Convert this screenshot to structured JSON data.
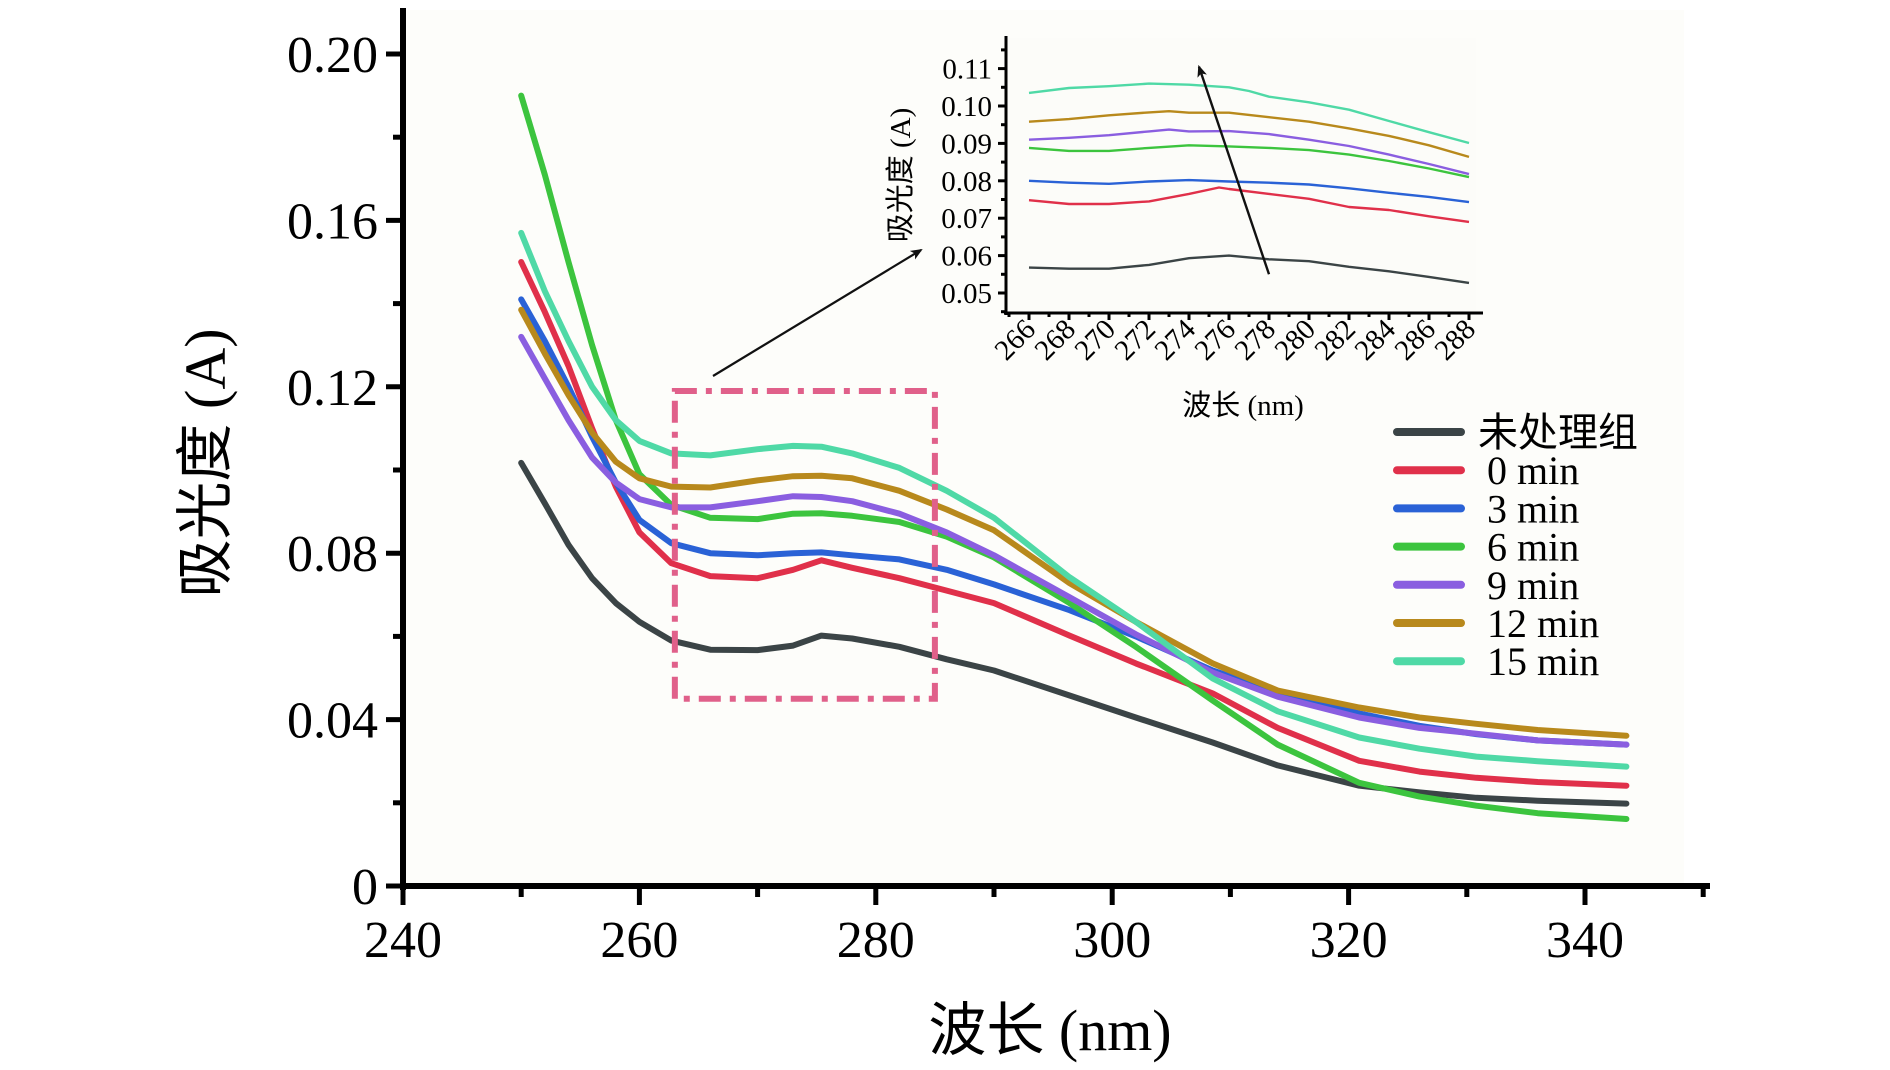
{
  "chart_data": {
    "type": "line",
    "title": "",
    "xlabel": "波长 (nm)",
    "ylabel": "吸光度 (A)",
    "xlim": [
      240,
      350
    ],
    "ylim": [
      0,
      0.2
    ],
    "xticks": [
      240,
      260,
      280,
      300,
      320,
      340
    ],
    "xtick_labels": [
      "240",
      "260",
      "280",
      "300",
      "320",
      "340"
    ],
    "yticks": [
      0,
      0.04,
      0.08,
      0.12,
      0.16,
      0.2
    ],
    "ytick_labels": [
      "0",
      "0.04",
      "0.08",
      "0.12",
      "0.16",
      "0.20"
    ],
    "grid": false,
    "legend_position": "right",
    "series": [
      {
        "name": "未处理组",
        "color": "#3b4446",
        "x": [
          250,
          252,
          254,
          256,
          258,
          260,
          262.7,
          266,
          270,
          273,
          275.4,
          278,
          282,
          286,
          290,
          296.4,
          302,
          308.5,
          314,
          320.9,
          326,
          330.8,
          336,
          343.5
        ],
        "y": [
          0.1017,
          0.092,
          0.082,
          0.074,
          0.068,
          0.0635,
          0.059,
          0.0568,
          0.0567,
          0.0578,
          0.0602,
          0.0595,
          0.0575,
          0.0545,
          0.0518,
          0.0458,
          0.0405,
          0.0345,
          0.029,
          0.0241,
          0.0225,
          0.0212,
          0.0205,
          0.0198
        ]
      },
      {
        "name": "0 min",
        "color": "#e0304a",
        "x": [
          250,
          252,
          254,
          256,
          258,
          260,
          262.7,
          266,
          270,
          273,
          275.4,
          278,
          282,
          286,
          290,
          296.4,
          302,
          308.5,
          314,
          320.9,
          326,
          330.8,
          336,
          343.5
        ],
        "y": [
          0.15,
          0.138,
          0.125,
          0.11,
          0.096,
          0.085,
          0.0776,
          0.0745,
          0.074,
          0.076,
          0.0783,
          0.0765,
          0.074,
          0.071,
          0.068,
          0.0602,
          0.0535,
          0.0463,
          0.038,
          0.0301,
          0.0275,
          0.026,
          0.025,
          0.0241
        ]
      },
      {
        "name": "3 min",
        "color": "#2a62d6",
        "x": [
          250,
          252,
          254,
          256,
          258,
          260,
          262.7,
          266,
          270,
          273,
          275.4,
          278,
          282,
          286,
          290,
          296.4,
          302,
          308.5,
          314,
          320.9,
          326,
          330.8,
          336,
          343.5
        ],
        "y": [
          0.141,
          0.131,
          0.12,
          0.108,
          0.097,
          0.088,
          0.0824,
          0.08,
          0.0795,
          0.08,
          0.0802,
          0.0795,
          0.0785,
          0.076,
          0.0725,
          0.0663,
          0.06,
          0.0518,
          0.0465,
          0.0415,
          0.0385,
          0.0365,
          0.035,
          0.034
        ]
      },
      {
        "name": "6 min",
        "color": "#3cc43e",
        "x": [
          250,
          252,
          254,
          256,
          258,
          260,
          262.7,
          266,
          270,
          273,
          275.4,
          278,
          282,
          286,
          290,
          296.4,
          302,
          308.5,
          314,
          320.9,
          326,
          330.8,
          336,
          343.5
        ],
        "y": [
          0.19,
          0.171,
          0.15,
          0.13,
          0.112,
          0.099,
          0.0916,
          0.0885,
          0.0882,
          0.0895,
          0.0896,
          0.089,
          0.0875,
          0.084,
          0.079,
          0.068,
          0.0575,
          0.0446,
          0.034,
          0.0248,
          0.0215,
          0.0193,
          0.0175,
          0.0161
        ]
      },
      {
        "name": "9 min",
        "color": "#8a5ee0",
        "x": [
          250,
          252,
          254,
          256,
          258,
          260,
          262.7,
          266,
          270,
          273,
          275.4,
          278,
          282,
          286,
          290,
          296.4,
          302,
          308.5,
          314,
          320.9,
          326,
          330.8,
          336,
          343.5
        ],
        "y": [
          0.132,
          0.122,
          0.112,
          0.103,
          0.097,
          0.093,
          0.091,
          0.091,
          0.0925,
          0.0937,
          0.0935,
          0.0925,
          0.0895,
          0.085,
          0.0795,
          0.0694,
          0.0605,
          0.0513,
          0.0455,
          0.0405,
          0.038,
          0.0366,
          0.035,
          0.034
        ]
      },
      {
        "name": "12 min",
        "color": "#b8891c",
        "x": [
          250,
          252,
          254,
          256,
          258,
          260,
          262.7,
          266,
          270,
          273,
          275.4,
          278,
          282,
          286,
          290,
          296.4,
          302,
          308.5,
          314,
          320.9,
          326,
          330.8,
          336,
          343.5
        ],
        "y": [
          0.1385,
          0.128,
          0.118,
          0.109,
          0.102,
          0.098,
          0.096,
          0.0958,
          0.0975,
          0.0985,
          0.0986,
          0.098,
          0.095,
          0.0905,
          0.0855,
          0.0728,
          0.0635,
          0.0535,
          0.047,
          0.0429,
          0.0405,
          0.039,
          0.0375,
          0.0361
        ]
      },
      {
        "name": "15 min",
        "color": "#4fd9a6",
        "x": [
          250,
          252,
          254,
          256,
          258,
          260,
          262.7,
          266,
          270,
          273,
          275.4,
          278,
          282,
          286,
          290,
          296.4,
          302,
          308.5,
          314,
          320.9,
          326,
          330.8,
          336,
          343.5
        ],
        "y": [
          0.157,
          0.143,
          0.131,
          0.12,
          0.112,
          0.107,
          0.104,
          0.1035,
          0.105,
          0.1058,
          0.1056,
          0.104,
          0.1005,
          0.095,
          0.0885,
          0.0742,
          0.0635,
          0.0499,
          0.042,
          0.0357,
          0.033,
          0.0311,
          0.03,
          0.0287
        ]
      }
    ],
    "annotations": {
      "zoom_box": {
        "x_range": [
          263,
          285
        ],
        "y_range": [
          0.045,
          0.119
        ],
        "color": "#e0608a",
        "style": "dash-dot"
      },
      "callout_arrow": "points from zoom box to inset"
    },
    "inset": {
      "type": "line",
      "xlabel": "波长 (nm)",
      "ylabel": "吸光度 (A)",
      "xlim": [
        265,
        288.5
      ],
      "ylim": [
        0.045,
        0.118
      ],
      "xticks": [
        266,
        268,
        270,
        272,
        274,
        276,
        278,
        280,
        282,
        284,
        286,
        288
      ],
      "xtick_labels": [
        "266",
        "268",
        "270",
        "272",
        "274",
        "276",
        "278",
        "280",
        "282",
        "284",
        "286",
        "288"
      ],
      "yticks": [
        0.05,
        0.06,
        0.07,
        0.08,
        0.09,
        0.1,
        0.11
      ],
      "ytick_labels": [
        "0.05",
        "0.06",
        "0.07",
        "0.08",
        "0.09",
        "0.10",
        "0.11"
      ],
      "trend_arrow": {
        "from": [
          278,
          0.055
        ],
        "to": [
          274.5,
          0.1105
        ]
      },
      "series": [
        {
          "name": "未处理组",
          "color": "#3b4446",
          "x": [
            266,
            268,
            270,
            272,
            274,
            276,
            278,
            280,
            282,
            284,
            286,
            288
          ],
          "y": [
            0.0568,
            0.0565,
            0.0565,
            0.0575,
            0.0593,
            0.06,
            0.059,
            0.0585,
            0.057,
            0.0558,
            0.0543,
            0.0527
          ]
        },
        {
          "name": "0 min",
          "color": "#e0304a",
          "x": [
            266,
            268,
            270,
            272,
            274,
            275.5,
            276,
            278,
            280,
            282,
            284,
            286,
            288
          ],
          "y": [
            0.0748,
            0.0738,
            0.0738,
            0.0745,
            0.0765,
            0.0782,
            0.0778,
            0.0765,
            0.0752,
            0.073,
            0.0722,
            0.0705,
            0.069
          ]
        },
        {
          "name": "3 min",
          "color": "#2a62d6",
          "x": [
            266,
            268,
            270,
            272,
            274,
            276,
            278,
            280,
            282,
            284,
            286,
            288
          ],
          "y": [
            0.08,
            0.0795,
            0.0792,
            0.0798,
            0.0802,
            0.0798,
            0.0795,
            0.079,
            0.078,
            0.0768,
            0.0757,
            0.0743
          ]
        },
        {
          "name": "6 min",
          "color": "#3cc43e",
          "x": [
            266,
            268,
            270,
            272,
            274,
            276,
            278,
            280,
            282,
            284,
            286,
            288
          ],
          "y": [
            0.0888,
            0.088,
            0.088,
            0.0888,
            0.0895,
            0.0892,
            0.0888,
            0.0882,
            0.087,
            0.0853,
            0.0833,
            0.081
          ]
        },
        {
          "name": "9 min",
          "color": "#8a5ee0",
          "x": [
            266,
            268,
            270,
            272,
            273,
            274,
            276,
            278,
            280,
            282,
            284,
            286,
            288
          ],
          "y": [
            0.091,
            0.0915,
            0.0922,
            0.0932,
            0.0937,
            0.0932,
            0.0933,
            0.0925,
            0.091,
            0.0893,
            0.087,
            0.0845,
            0.0818
          ]
        },
        {
          "name": "12 min",
          "color": "#b8891c",
          "x": [
            266,
            268,
            270,
            272,
            273,
            274,
            276,
            278,
            280,
            282,
            284,
            286,
            288
          ],
          "y": [
            0.0958,
            0.0965,
            0.0975,
            0.0983,
            0.0986,
            0.0982,
            0.0982,
            0.097,
            0.0958,
            0.094,
            0.092,
            0.0895,
            0.0864
          ]
        },
        {
          "name": "15 min",
          "color": "#4fd9a6",
          "x": [
            266,
            268,
            270,
            272,
            274,
            276,
            277,
            278,
            280,
            282,
            284,
            286,
            288
          ],
          "y": [
            0.1035,
            0.1048,
            0.1053,
            0.106,
            0.1057,
            0.105,
            0.104,
            0.1025,
            0.101,
            0.099,
            0.096,
            0.093,
            0.0901
          ]
        }
      ]
    }
  }
}
